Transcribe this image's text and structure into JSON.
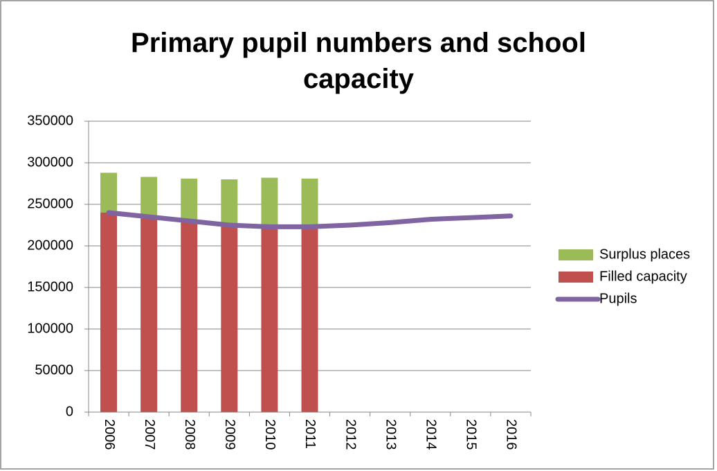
{
  "chart_data": {
    "type": "stacked-bar-line",
    "title": "Primary pupil numbers and school capacity",
    "categories": [
      "2006",
      "2007",
      "2008",
      "2009",
      "2010",
      "2011",
      "2012",
      "2013",
      "2014",
      "2015",
      "2016"
    ],
    "series": [
      {
        "name": "Filled capacity",
        "type": "bar",
        "color": "#c0504d",
        "values": [
          240000,
          235000,
          230000,
          225000,
          223000,
          223000,
          null,
          null,
          null,
          null,
          null
        ]
      },
      {
        "name": "Surplus places",
        "type": "bar",
        "color": "#9bbb59",
        "values": [
          48000,
          48000,
          51000,
          55000,
          59000,
          58000,
          null,
          null,
          null,
          null,
          null
        ]
      },
      {
        "name": "Pupils",
        "type": "line",
        "color": "#8064a2",
        "values": [
          240000,
          235000,
          230000,
          225000,
          223000,
          223000,
          225000,
          228000,
          232000,
          234000,
          236000
        ]
      }
    ],
    "ylim": [
      0,
      350000
    ],
    "yticks": [
      0,
      50000,
      100000,
      150000,
      200000,
      250000,
      300000,
      350000
    ],
    "grid": true,
    "legend": "right"
  }
}
